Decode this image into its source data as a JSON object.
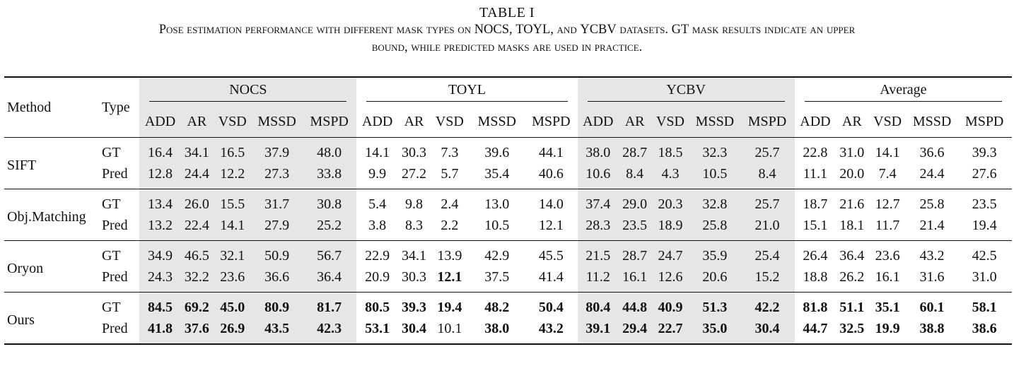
{
  "caption": {
    "title": "TABLE I",
    "line1": [
      "Pose estimation performance with different mask types on ",
      "NOCS",
      ", ",
      "TOYL",
      ", and ",
      "YCBV",
      " datasets. ",
      "GT",
      " mask results indicate an upper"
    ],
    "line2": "bound, while predicted masks are used in practice."
  },
  "header": {
    "method": "Method",
    "type": "Type",
    "groups": [
      "NOCS",
      "TOYL",
      "YCBV",
      "Average"
    ],
    "metrics": [
      "ADD",
      "AR",
      "VSD",
      "MSSD",
      "MSPD"
    ]
  },
  "rows": [
    {
      "method": "SIFT",
      "gt": {
        "type": "GT",
        "values": [
          "16.4",
          "34.1",
          "16.5",
          "37.9",
          "48.0",
          "14.1",
          "30.3",
          "7.3",
          "39.6",
          "44.1",
          "38.0",
          "28.7",
          "18.5",
          "32.3",
          "25.7",
          "22.8",
          "31.0",
          "14.1",
          "36.6",
          "39.3"
        ]
      },
      "pred": {
        "type": "Pred",
        "values": [
          "12.8",
          "24.4",
          "12.2",
          "27.3",
          "33.8",
          "9.9",
          "27.2",
          "5.7",
          "35.4",
          "40.6",
          "10.6",
          "8.4",
          "4.3",
          "10.5",
          "8.4",
          "11.1",
          "20.0",
          "7.4",
          "24.4",
          "27.6"
        ]
      }
    },
    {
      "method": "Obj.Matching",
      "gt": {
        "type": "GT",
        "values": [
          "13.4",
          "26.0",
          "15.5",
          "31.7",
          "30.8",
          "5.4",
          "9.8",
          "2.4",
          "13.0",
          "14.0",
          "37.4",
          "29.0",
          "20.3",
          "32.8",
          "25.7",
          "18.7",
          "21.6",
          "12.7",
          "25.8",
          "23.5"
        ]
      },
      "pred": {
        "type": "Pred",
        "values": [
          "13.2",
          "22.4",
          "14.1",
          "27.9",
          "25.2",
          "3.8",
          "8.3",
          "2.2",
          "10.5",
          "12.1",
          "28.3",
          "23.5",
          "18.9",
          "25.8",
          "21.0",
          "15.1",
          "18.1",
          "11.7",
          "21.4",
          "19.4"
        ]
      }
    },
    {
      "method": "Oryon",
      "gt": {
        "type": "GT",
        "values": [
          "34.9",
          "46.5",
          "32.1",
          "50.9",
          "56.7",
          "22.9",
          "34.1",
          "13.9",
          "42.9",
          "45.5",
          "21.5",
          "28.7",
          "24.7",
          "35.9",
          "25.4",
          "26.4",
          "36.4",
          "23.6",
          "43.2",
          "42.5"
        ]
      },
      "pred": {
        "type": "Pred",
        "values": [
          "24.3",
          "32.2",
          "23.6",
          "36.6",
          "36.4",
          "20.9",
          "30.3",
          "12.1",
          "37.5",
          "41.4",
          "11.2",
          "16.1",
          "12.6",
          "20.6",
          "15.2",
          "18.8",
          "26.2",
          "16.1",
          "31.6",
          "31.0"
        ]
      }
    },
    {
      "method": "Ours",
      "gt": {
        "type": "GT",
        "values": [
          "84.5",
          "69.2",
          "45.0",
          "80.9",
          "81.7",
          "80.5",
          "39.3",
          "19.4",
          "48.2",
          "50.4",
          "80.4",
          "44.8",
          "40.9",
          "51.3",
          "42.2",
          "81.8",
          "51.1",
          "35.1",
          "60.1",
          "58.1"
        ]
      },
      "pred": {
        "type": "Pred",
        "values": [
          "41.8",
          "37.6",
          "26.9",
          "43.5",
          "42.3",
          "53.1",
          "30.4",
          "10.1",
          "38.0",
          "43.2",
          "39.1",
          "29.4",
          "22.7",
          "35.0",
          "30.4",
          "44.7",
          "32.5",
          "19.9",
          "38.8",
          "38.6"
        ]
      }
    }
  ]
}
